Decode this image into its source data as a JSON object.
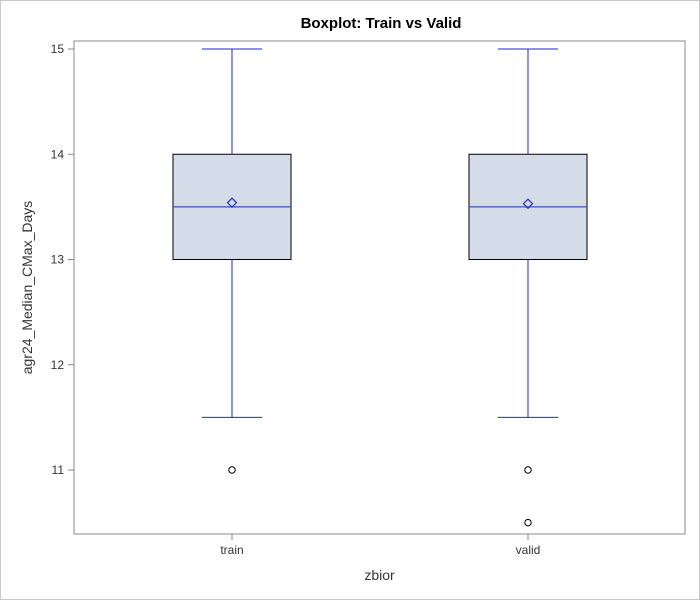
{
  "chart_data": {
    "type": "boxplot",
    "title": "Boxplot: Train vs Valid",
    "xlabel": "zbior",
    "ylabel": "agr24_Median_CMax_Days",
    "ylim": [
      10.42,
      15.07
    ],
    "yticks": [
      11,
      12,
      13,
      14,
      15
    ],
    "categories": [
      "train",
      "valid"
    ],
    "grid": false,
    "boxes": [
      {
        "category": "train",
        "whisker_low": 11.5,
        "q1": 13.0,
        "median": 13.5,
        "q3": 14.0,
        "whisker_high": 15.0,
        "mean": 13.54,
        "outliers": [
          11.0
        ]
      },
      {
        "category": "valid",
        "whisker_low": 11.5,
        "q1": 13.0,
        "median": 13.5,
        "q3": 14.0,
        "whisker_high": 15.0,
        "mean": 13.53,
        "outliers": [
          11.0,
          10.5
        ]
      }
    ],
    "colors": {
      "box_fill": "#d5dce9",
      "box_border": "#000000",
      "whisker": "#2222cc",
      "median": "#3355bb",
      "mean_marker": "#2233aa",
      "outlier": "#000000",
      "axis": "#888888"
    }
  }
}
